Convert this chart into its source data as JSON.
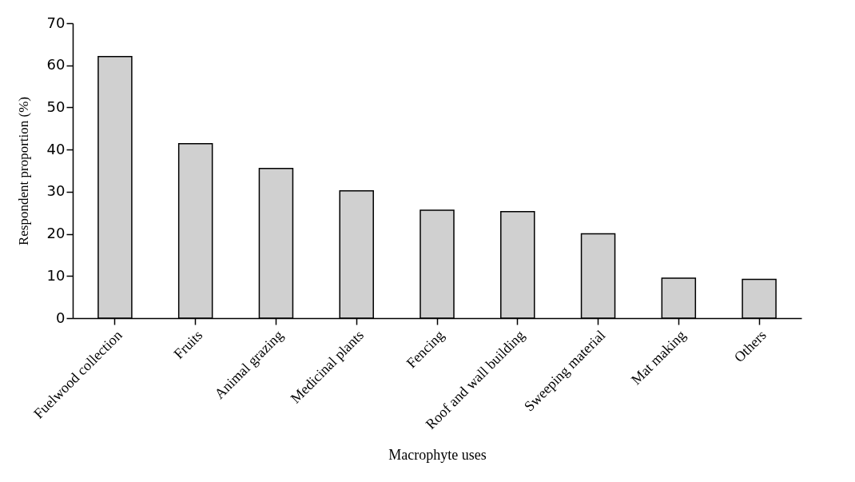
{
  "chart_data": {
    "type": "bar",
    "xlabel": "Macrophyte uses",
    "ylabel": "Respondent proportion (%)",
    "categories": [
      "Fuelwood collection",
      "Fruits",
      "Animal grazing",
      "Medicinal plants",
      "Fencing",
      "Roof and wall building",
      "Sweeping material",
      "Mat making",
      "Others"
    ],
    "values": [
      62.1,
      41.4,
      35.5,
      30.2,
      25.6,
      25.3,
      20.0,
      9.5,
      9.2
    ],
    "color": "#d0d0d0",
    "ylim": [
      0,
      70
    ],
    "yticks": [
      0,
      10,
      20,
      30,
      40,
      50,
      60,
      70
    ],
    "grid": false
  }
}
